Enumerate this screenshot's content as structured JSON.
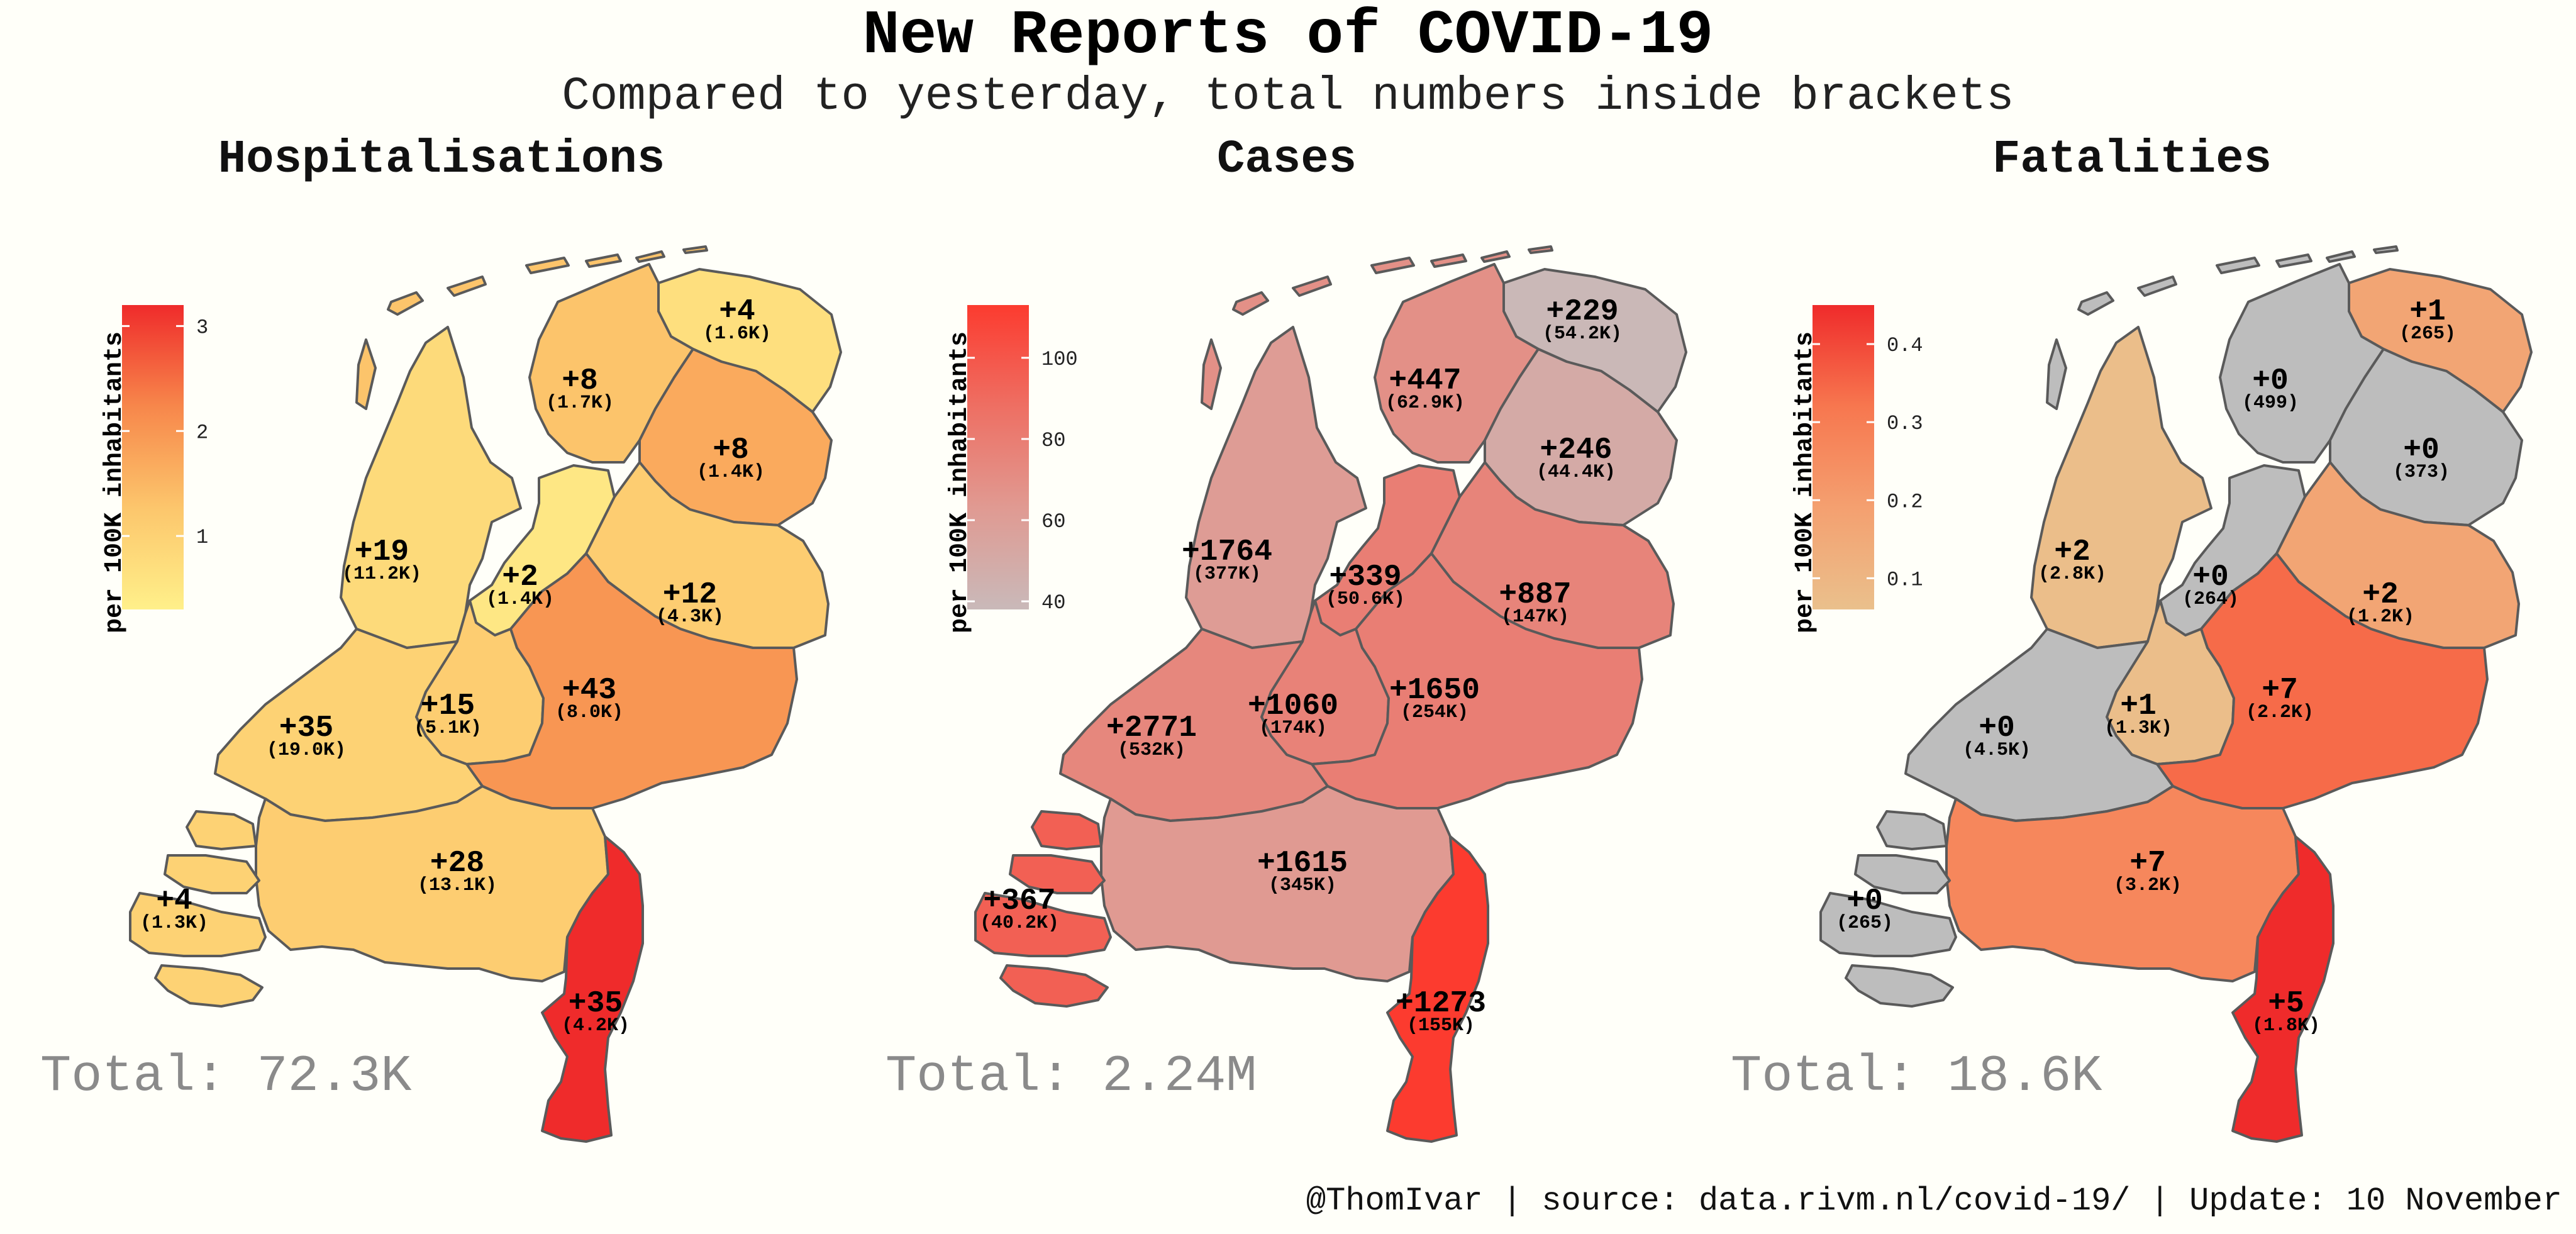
{
  "header": {
    "title": "New Reports of COVID-19",
    "subtitle": "Compared to yesterday, total numbers inside brackets"
  },
  "caption": "@ThomIvar | source: data.rivm.nl/covid-19/ | Update: 10 November",
  "legend_title": "per 100K inhabitants",
  "provinces": [
    "Groningen",
    "Friesland",
    "Drenthe",
    "Noord-Holland",
    "Flevoland",
    "Overijssel",
    "Utrecht",
    "Gelderland",
    "Zuid-Holland",
    "Noord-Brabant",
    "Zeeland",
    "Limburg"
  ],
  "panels": [
    {
      "title": "Hospitalisations",
      "total_text": "Total: 72.3K",
      "legend": {
        "min": 0.3,
        "max": 3.2,
        "ticks": [
          {
            "value": 1,
            "label": "1"
          },
          {
            "value": 2,
            "label": "2"
          },
          {
            "value": 3,
            "label": "3"
          }
        ],
        "colors": [
          "#fff08a",
          "#fcc66c",
          "#f7874b",
          "#ef2b2b"
        ],
        "na_color": "#bdbdbd"
      },
      "regions": {
        "Groningen": {
          "new": "+4",
          "total": "(1.6K)",
          "value": 0.7
        },
        "Friesland": {
          "new": "+8",
          "total": "(1.7K)",
          "value": 1.3
        },
        "Drenthe": {
          "new": "+8",
          "total": "(1.4K)",
          "value": 1.7
        },
        "Noord-Holland": {
          "new": "+19",
          "total": "(11.2K)",
          "value": 0.8
        },
        "Flevoland": {
          "new": "+2",
          "total": "(1.4K)",
          "value": 0.5
        },
        "Overijssel": {
          "new": "+12",
          "total": "(4.3K)",
          "value": 1.1
        },
        "Utrecht": {
          "new": "+15",
          "total": "(5.1K)",
          "value": 1.1
        },
        "Gelderland": {
          "new": "+43",
          "total": "(8.0K)",
          "value": 2.0
        },
        "Zuid-Holland": {
          "new": "+35",
          "total": "(19.0K)",
          "value": 1.0
        },
        "Noord-Brabant": {
          "new": "+28",
          "total": "(13.1K)",
          "value": 1.1
        },
        "Zeeland": {
          "new": "+4",
          "total": "(1.3K)",
          "value": 1.0
        },
        "Limburg": {
          "new": "+35",
          "total": "(4.2K)",
          "value": 3.2
        }
      }
    },
    {
      "title": "Cases",
      "total_text": "Total: 2.24M",
      "legend": {
        "min": 38,
        "max": 113,
        "ticks": [
          {
            "value": 40,
            "label": "40"
          },
          {
            "value": 60,
            "label": "60"
          },
          {
            "value": 80,
            "label": "80"
          },
          {
            "value": 100,
            "label": "100"
          }
        ],
        "colors": [
          "#c9b9b9",
          "#e09a92",
          "#ee6f63",
          "#fc3b2f"
        ],
        "na_color": "#bdbdbd"
      },
      "regions": {
        "Groningen": {
          "new": "+229",
          "total": "(54.2K)",
          "value": 39
        },
        "Friesland": {
          "new": "+447",
          "total": "(62.9K)",
          "value": 69
        },
        "Drenthe": {
          "new": "+246",
          "total": "(44.4K)",
          "value": 50
        },
        "Noord-Holland": {
          "new": "+1764",
          "total": "(377K)",
          "value": 61
        },
        "Flevoland": {
          "new": "+339",
          "total": "(50.6K)",
          "value": 79
        },
        "Overijssel": {
          "new": "+887",
          "total": "(147K)",
          "value": 76
        },
        "Utrecht": {
          "new": "+1060",
          "total": "(174K)",
          "value": 77
        },
        "Gelderland": {
          "new": "+1650",
          "total": "(254K)",
          "value": 79
        },
        "Zuid-Holland": {
          "new": "+2771",
          "total": "(532K)",
          "value": 74
        },
        "Noord-Brabant": {
          "new": "+1615",
          "total": "(345K)",
          "value": 63
        },
        "Zeeland": {
          "new": "+367",
          "total": "(40.2K)",
          "value": 95
        },
        "Limburg": {
          "new": "+1273",
          "total": "(155K)",
          "value": 113
        }
      }
    },
    {
      "title": "Fatalities",
      "total_text": "Total: 18.6K",
      "legend": {
        "min": 0.06,
        "max": 0.45,
        "ticks": [
          {
            "value": 0.1,
            "label": "0.1"
          },
          {
            "value": 0.2,
            "label": "0.2"
          },
          {
            "value": 0.3,
            "label": "0.3"
          },
          {
            "value": 0.4,
            "label": "0.4"
          }
        ],
        "colors": [
          "#eac08c",
          "#f4a070",
          "#f7774f",
          "#ef2b2b"
        ],
        "na_color": "#bdbdbd"
      },
      "regions": {
        "Groningen": {
          "new": "+1",
          "total": "(265)",
          "value": 0.17
        },
        "Friesland": {
          "new": "+0",
          "total": "(499)",
          "value": null
        },
        "Drenthe": {
          "new": "+0",
          "total": "(373)",
          "value": null
        },
        "Noord-Holland": {
          "new": "+2",
          "total": "(2.8K)",
          "value": 0.07
        },
        "Flevoland": {
          "new": "+0",
          "total": "(264)",
          "value": null
        },
        "Overijssel": {
          "new": "+2",
          "total": "(1.2K)",
          "value": 0.17
        },
        "Utrecht": {
          "new": "+1",
          "total": "(1.3K)",
          "value": 0.07
        },
        "Gelderland": {
          "new": "+7",
          "total": "(2.2K)",
          "value": 0.34
        },
        "Zuid-Holland": {
          "new": "+0",
          "total": "(4.5K)",
          "value": null
        },
        "Noord-Brabant": {
          "new": "+7",
          "total": "(3.2K)",
          "value": 0.27
        },
        "Zeeland": {
          "new": "+0",
          "total": "(265)",
          "value": null
        },
        "Limburg": {
          "new": "+5",
          "total": "(1.8K)",
          "value": 0.45
        }
      }
    }
  ]
}
